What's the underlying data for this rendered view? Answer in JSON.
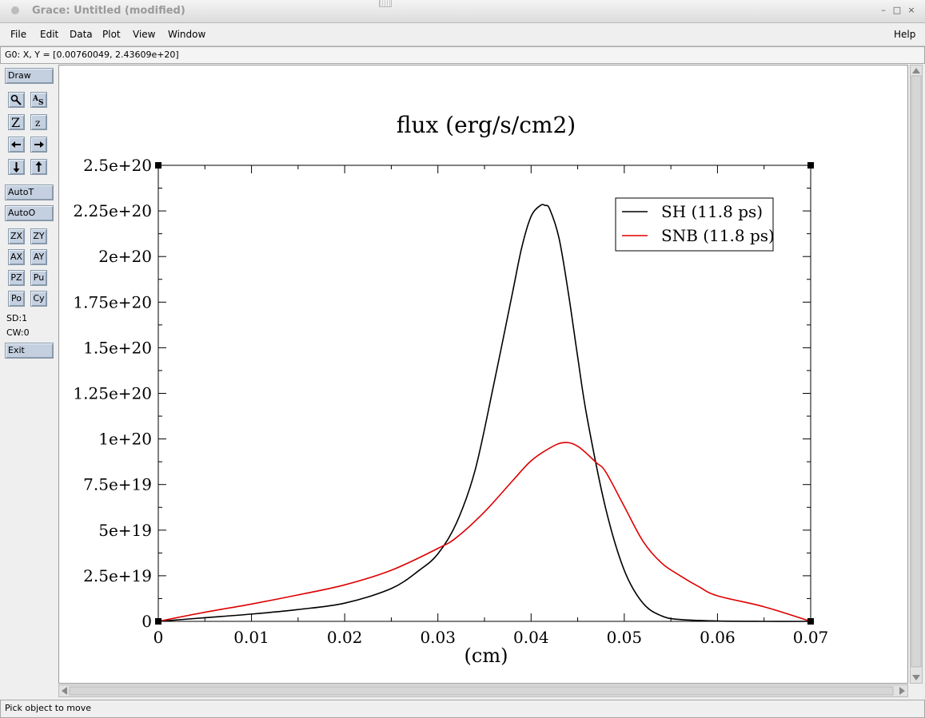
{
  "window": {
    "title": "Grace: Untitled (modified)",
    "controls": {
      "minimize": "–",
      "maximize": "□",
      "close": "×"
    }
  },
  "menubar": {
    "left": [
      "File",
      "Edit",
      "Data",
      "Plot",
      "View",
      "Window"
    ],
    "help": "Help"
  },
  "locator": {
    "text": "G0: X, Y = [0.00760049, 2.43609e+20]"
  },
  "toolbox": {
    "draw": "Draw",
    "autot": "AutoT",
    "autoo": "AutoO",
    "grid": [
      [
        "ZX",
        "ZY"
      ],
      [
        "AX",
        "AY"
      ],
      [
        "PZ",
        "Pu"
      ],
      [
        "Po",
        "Cy"
      ]
    ],
    "sd": "SD:1",
    "cw": "CW:0",
    "exit": "Exit",
    "icons": [
      "magnifier-icon",
      "text-label-icon",
      "zoom-in-icon",
      "zoom-out-icon",
      "arrow-left-icon",
      "arrow-right-icon",
      "arrow-down-icon",
      "arrow-up-icon"
    ]
  },
  "status": {
    "text": "Pick object to move"
  },
  "colors": {
    "sh": "#000000",
    "snb": "#dd0000",
    "button": "#c4d0e0"
  },
  "chart_data": {
    "type": "line",
    "title": "flux (erg/s/cm2)",
    "xlabel": "(cm)",
    "ylabel": "",
    "xlim": [
      0,
      0.07
    ],
    "ylim": [
      0,
      2.5e+20
    ],
    "xticks": [
      0,
      0.01,
      0.02,
      0.03,
      0.04,
      0.05,
      0.06,
      0.07
    ],
    "xtick_labels": [
      "0",
      "0.01",
      "0.02",
      "0.03",
      "0.04",
      "0.05",
      "0.06",
      "0.07"
    ],
    "yticks": [
      0,
      2.5e+19,
      5e+19,
      7.5e+19,
      1e+20,
      1.25e+20,
      1.5e+20,
      1.75e+20,
      2e+20,
      2.25e+20,
      2.5e+20
    ],
    "ytick_labels": [
      "0",
      "2.5e+19",
      "5e+19",
      "7.5e+19",
      "1e+20",
      "1.25e+20",
      "1.5e+20",
      "1.75e+20",
      "2e+20",
      "2.25e+20",
      "2.5e+20"
    ],
    "grid": false,
    "legend": "top-right",
    "series": [
      {
        "name": "SH (11.8 ps)",
        "x": [
          0,
          0.005,
          0.01,
          0.015,
          0.02,
          0.025,
          0.028,
          0.03,
          0.032,
          0.034,
          0.036,
          0.038,
          0.039,
          0.04,
          0.041,
          0.0415,
          0.042,
          0.043,
          0.044,
          0.045,
          0.046,
          0.048,
          0.05,
          0.052,
          0.054,
          0.056,
          0.06,
          0.065,
          0.07
        ],
        "y": [
          0,
          2e+18,
          4e+18,
          6.5e+18,
          1e+19,
          1.8e+19,
          2.8e+19,
          3.7e+19,
          5.4e+19,
          8.3e+19,
          1.3e+20,
          1.8e+20,
          2.05e+20,
          2.22e+20,
          2.28e+20,
          2.28e+20,
          2.26e+20,
          2.1e+20,
          1.8e+20,
          1.45e+20,
          1.12e+20,
          6.2e+19,
          2.8e+19,
          1e+19,
          3e+18,
          1e+18,
          2e+17,
          0,
          0
        ]
      },
      {
        "name": "SNB (11.8 ps)",
        "x": [
          0,
          0.005,
          0.01,
          0.015,
          0.02,
          0.025,
          0.03,
          0.032,
          0.035,
          0.038,
          0.04,
          0.042,
          0.0435,
          0.045,
          0.047,
          0.048,
          0.05,
          0.052,
          0.054,
          0.056,
          0.058,
          0.06,
          0.065,
          0.07
        ],
        "y": [
          0,
          5e+18,
          9.5e+18,
          1.45e+19,
          2e+19,
          2.8e+19,
          4e+19,
          4.6e+19,
          6e+19,
          7.7e+19,
          8.8e+19,
          9.5e+19,
          9.8e+19,
          9.6e+19,
          8.7e+19,
          8.2e+19,
          6.3e+19,
          4.4e+19,
          3.2e+19,
          2.5e+19,
          1.9e+19,
          1.4e+19,
          8e+18,
          0
        ]
      }
    ]
  }
}
